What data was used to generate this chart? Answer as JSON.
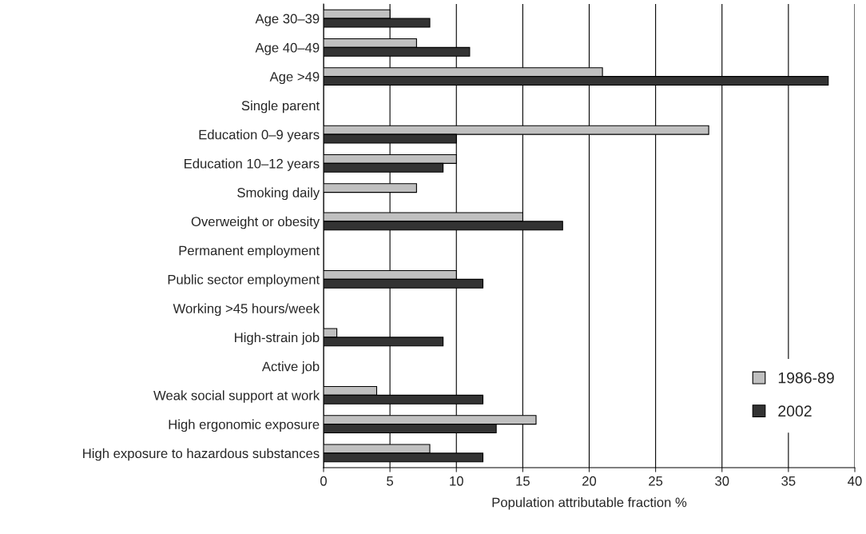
{
  "chart_data": {
    "type": "bar",
    "orientation": "horizontal",
    "xlabel": "Population attributable fraction %",
    "categories": [
      "Age 30–39",
      "Age 40–49",
      "Age >49",
      "Single parent",
      "Education 0–9 years",
      "Education 10–12 years",
      "Smoking daily",
      "Overweight or obesity",
      "Permanent employment",
      "Public sector employment",
      "Working >45 hours/week",
      "High-strain job",
      "Active job",
      "Weak social support at work",
      "High ergonomic exposure",
      "High exposure to hazardous substances"
    ],
    "series": [
      {
        "name": "1986-89",
        "color": "#c0c0c0",
        "values": [
          5,
          7,
          21,
          null,
          29,
          10,
          7,
          15,
          null,
          10,
          null,
          1,
          null,
          4,
          16,
          8
        ]
      },
      {
        "name": "2002",
        "color": "#333333",
        "values": [
          8,
          11,
          38,
          null,
          10,
          9,
          null,
          18,
          null,
          12,
          null,
          9,
          null,
          12,
          13,
          12
        ]
      }
    ],
    "xlim": [
      0,
      40
    ],
    "xticks": [
      0,
      5,
      10,
      15,
      20,
      25,
      30,
      35,
      40
    ],
    "grid": "x",
    "legend": "bottom right"
  }
}
